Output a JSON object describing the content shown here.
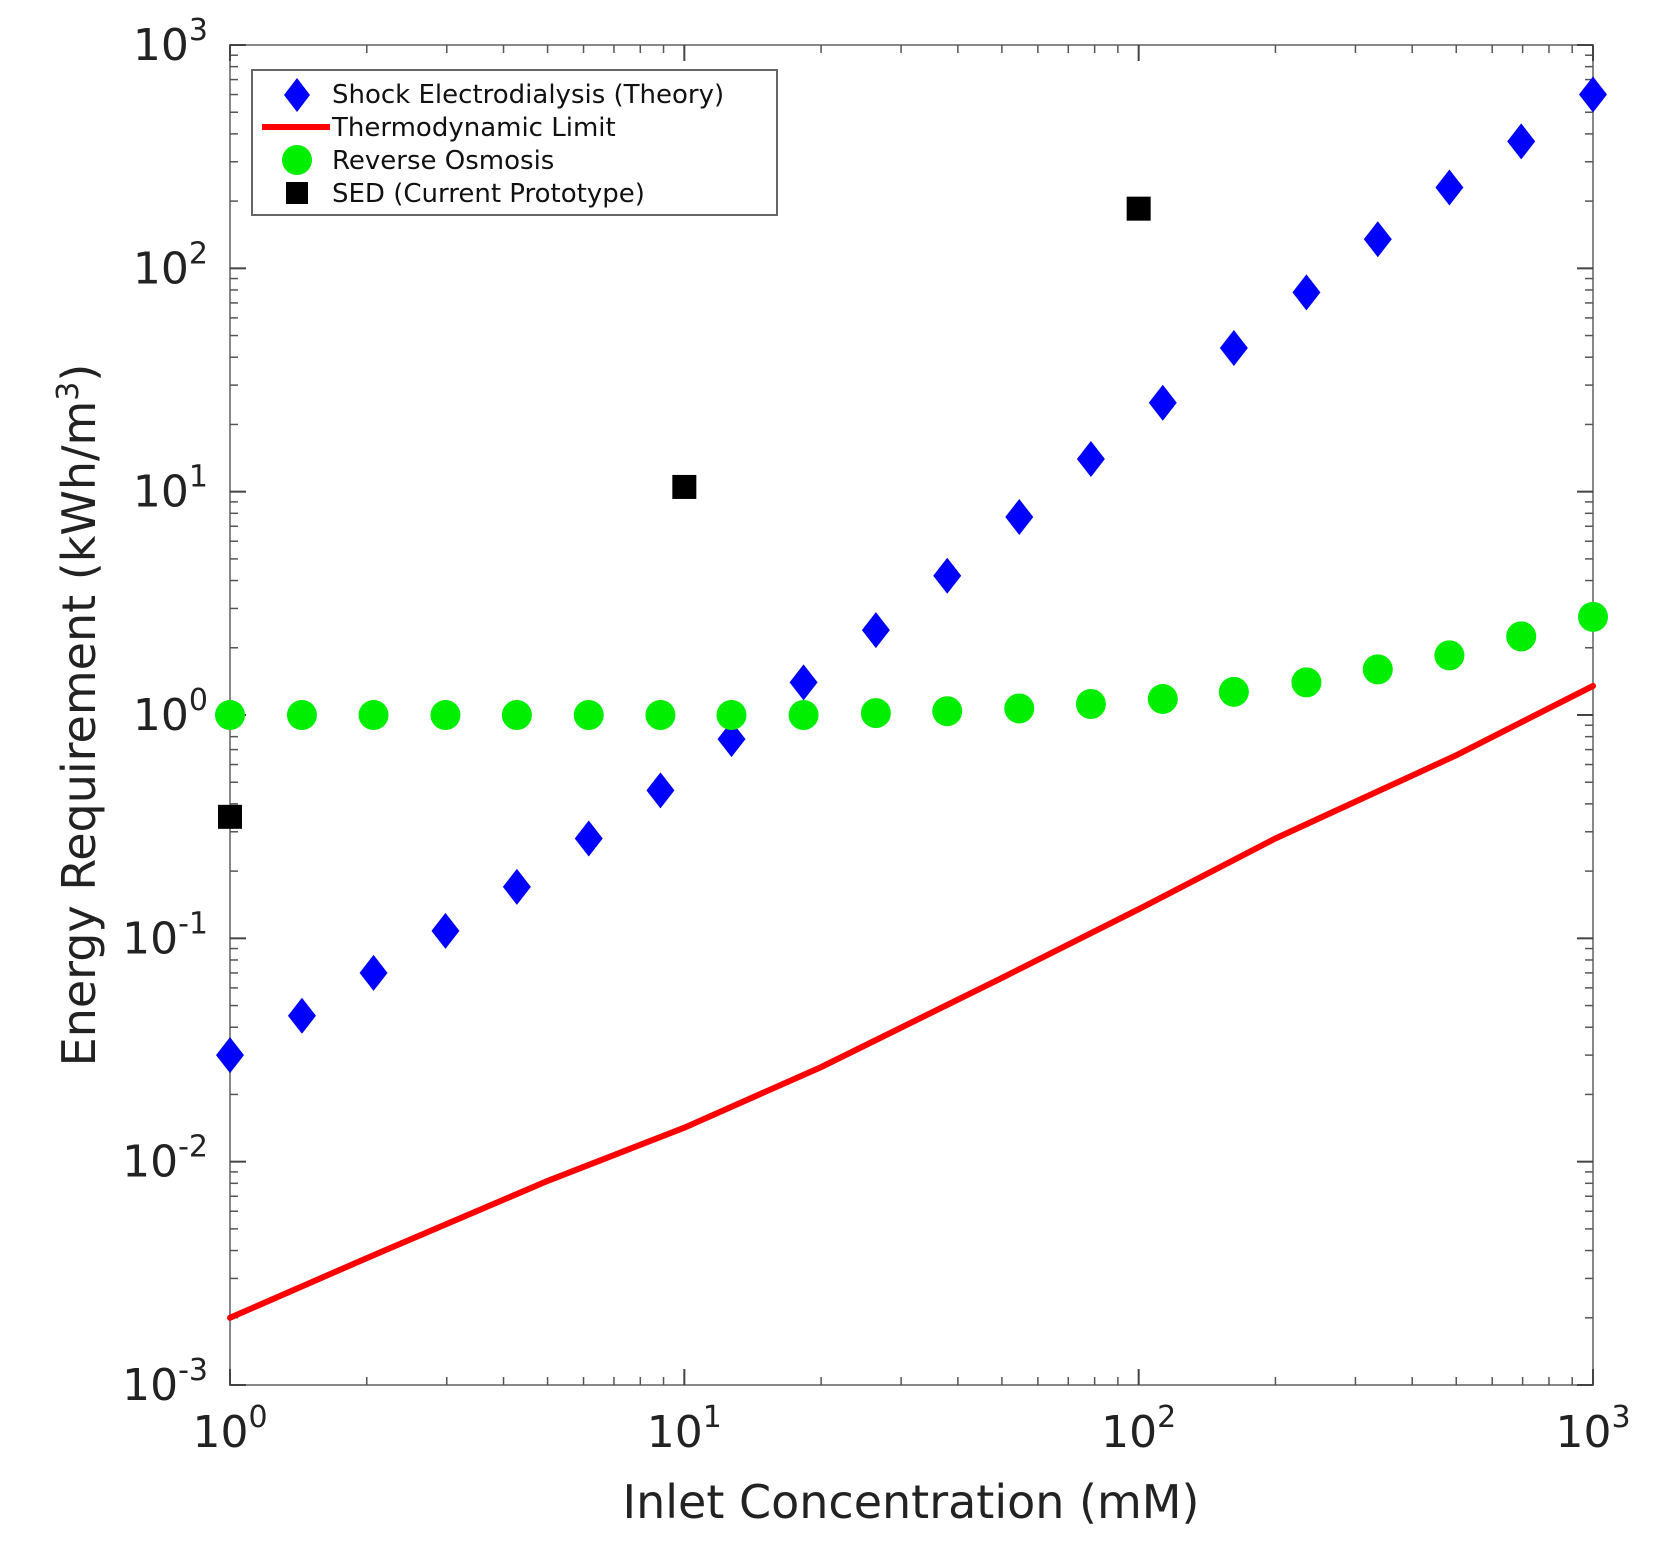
{
  "chart_data": {
    "type": "scatter",
    "xscale": "log",
    "yscale": "log",
    "xlabel": "Inlet Concentration (mM)",
    "ylabel_text": "Energy Requirement (kWh/m",
    "ylabel_sup": "3",
    "ylabel_close": ")",
    "xlim": [
      1,
      1000
    ],
    "ylim": [
      0.001,
      1000
    ],
    "x_ticks": [
      {
        "value": 1,
        "base": "10",
        "exp": "0"
      },
      {
        "value": 10,
        "base": "10",
        "exp": "1"
      },
      {
        "value": 100,
        "base": "10",
        "exp": "2"
      },
      {
        "value": 1000,
        "base": "10",
        "exp": "3"
      }
    ],
    "y_ticks": [
      {
        "value": 0.001,
        "base": "10",
        "exp": "-3"
      },
      {
        "value": 0.01,
        "base": "10",
        "exp": "-2"
      },
      {
        "value": 0.1,
        "base": "10",
        "exp": "-1"
      },
      {
        "value": 1,
        "base": "10",
        "exp": "0"
      },
      {
        "value": 10,
        "base": "10",
        "exp": "1"
      },
      {
        "value": 100,
        "base": "10",
        "exp": "2"
      },
      {
        "value": 1000,
        "base": "10",
        "exp": "3"
      }
    ],
    "series": [
      {
        "name": "Shock Electrodialysis (Theory)",
        "marker": "diamond",
        "color": "#0000ff",
        "x": [
          1,
          1.44,
          2.07,
          2.98,
          4.28,
          6.16,
          8.86,
          12.7,
          18.3,
          26.4,
          37.9,
          54.6,
          78.5,
          113,
          162,
          234,
          336,
          483,
          695,
          1000
        ],
        "y": [
          0.03,
          0.045,
          0.07,
          0.108,
          0.17,
          0.28,
          0.46,
          0.78,
          1.4,
          2.4,
          4.2,
          7.7,
          14,
          25,
          44,
          78,
          135,
          230,
          370,
          600
        ]
      },
      {
        "name": "Thermodynamic Limit",
        "marker": "line",
        "color": "#ff0000",
        "x": [
          1,
          2,
          5,
          10,
          20,
          50,
          100,
          200,
          500,
          1000
        ],
        "y": [
          0.002,
          0.0037,
          0.0082,
          0.0142,
          0.0265,
          0.0665,
          0.135,
          0.28,
          0.66,
          1.35
        ]
      },
      {
        "name": "Reverse Osmosis",
        "marker": "circle",
        "color": "#00ee00",
        "x": [
          1,
          1.44,
          2.07,
          2.98,
          4.28,
          6.16,
          8.86,
          12.7,
          18.3,
          26.4,
          37.9,
          54.6,
          78.5,
          113,
          162,
          234,
          336,
          483,
          695,
          1000
        ],
        "y": [
          1.0,
          1.0,
          1.0,
          1.0,
          1.0,
          1.0,
          1.0,
          1.0,
          1.0,
          1.02,
          1.04,
          1.07,
          1.12,
          1.18,
          1.27,
          1.4,
          1.6,
          1.85,
          2.25,
          2.75
        ]
      },
      {
        "name": "SED (Current Prototype)",
        "marker": "square",
        "color": "#000000",
        "x": [
          1,
          10,
          100
        ],
        "y": [
          0.35,
          10.5,
          185
        ]
      }
    ],
    "legend": {
      "position": "top-left"
    },
    "grid": false
  }
}
